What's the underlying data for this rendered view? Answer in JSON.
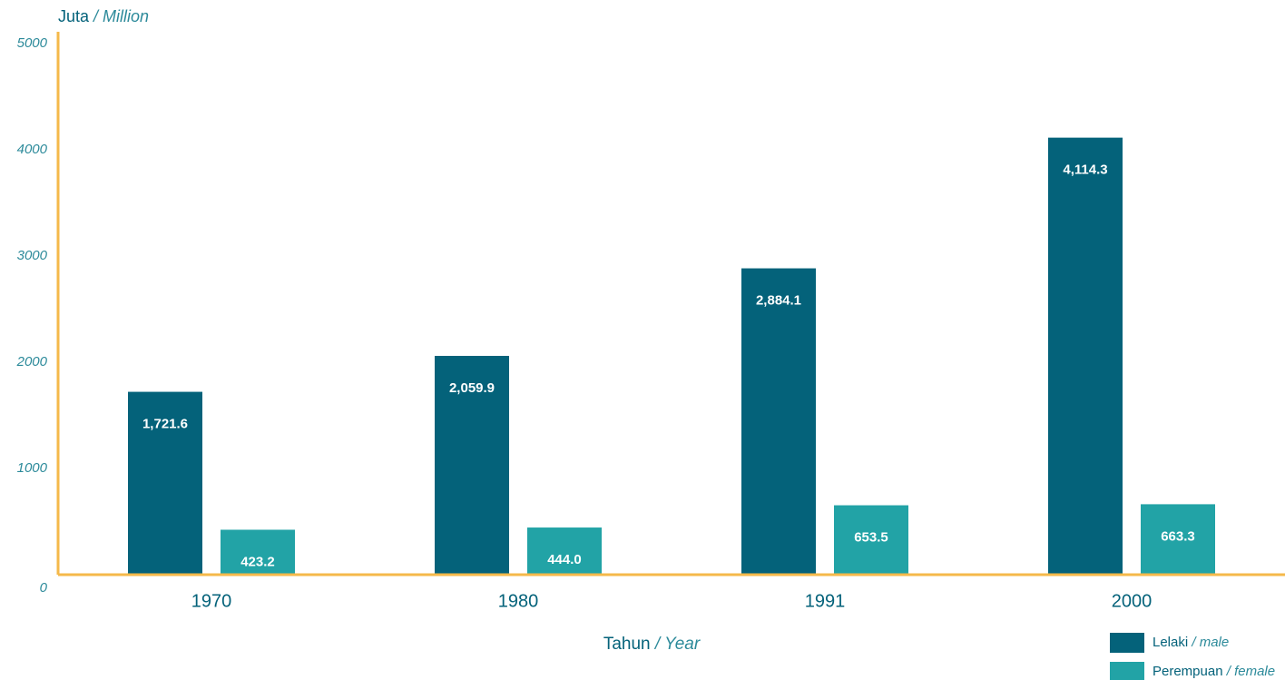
{
  "chart_data": {
    "type": "bar",
    "ylabel": {
      "main": "Juta",
      "translation": "/ Million"
    },
    "xlabel": {
      "main": "Tahun",
      "translation": "/ Year"
    },
    "categories": [
      "1970",
      "1980",
      "1991",
      "2000"
    ],
    "series": [
      {
        "name": "Lelaki",
        "name_translation": "/ male",
        "color": "#04627a",
        "values": [
          1721.6,
          2059.9,
          2884.1,
          4114.3
        ],
        "value_labels": [
          "1,721.6",
          "2,059.9",
          "2,884.1",
          "4,114.3"
        ]
      },
      {
        "name": "Perempuan",
        "name_translation": "/ female",
        "color": "#22a3a6",
        "values": [
          423.2,
          444.0,
          653.5,
          663.3
        ],
        "value_labels": [
          "423.2",
          "444.0",
          "653.5",
          "663.3"
        ]
      }
    ],
    "ylim": [
      0,
      5000
    ],
    "yticks": [
      0,
      1000,
      2000,
      3000,
      4000,
      5000
    ],
    "axis_color": "#f5b94a",
    "grid": false
  }
}
